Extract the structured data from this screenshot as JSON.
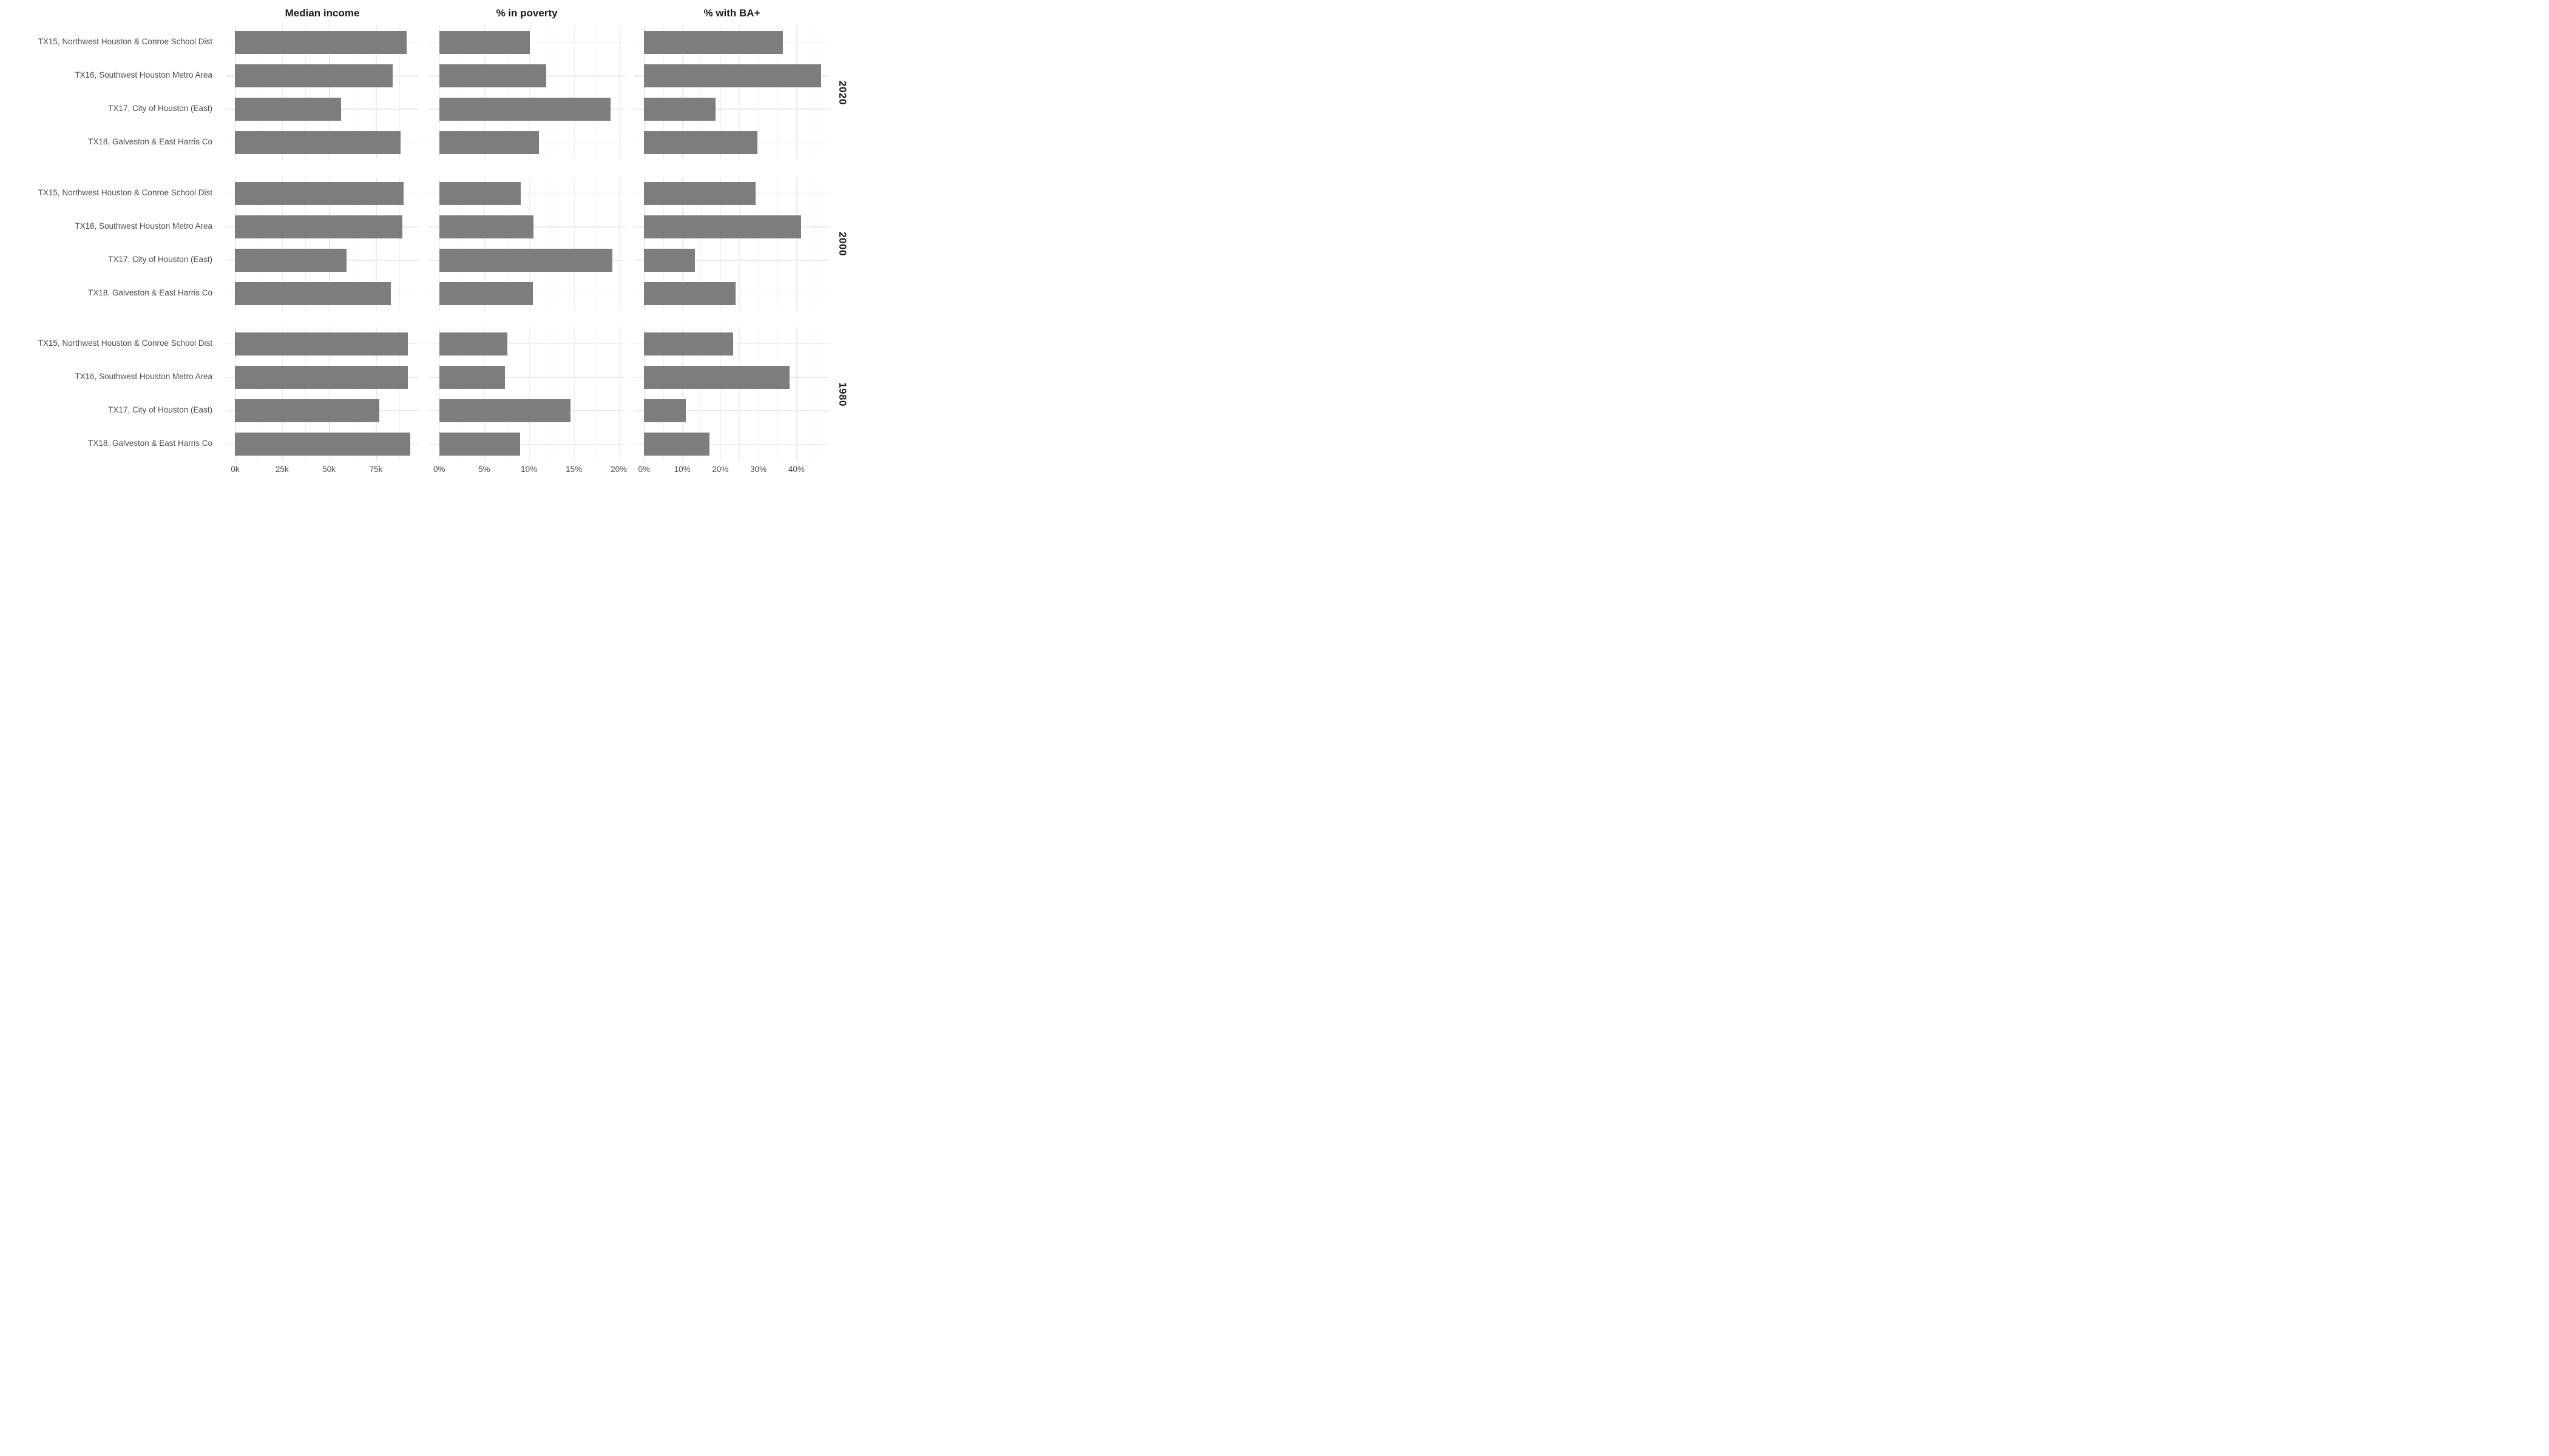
{
  "chart_data": {
    "type": "bar",
    "orientation": "horizontal",
    "faceting": "metric columns by year rows",
    "grid": "on",
    "legend": "none",
    "bar_color": "#7d7d7d",
    "gridline_color": "#ebebeb",
    "axis_text_color": "#4d4d4d",
    "title_text_color": "#1a1a1a",
    "categories": [
      "TX15, Northwest Houston & Conroe School Dist",
      "TX16, Southwest Houston Metro Area",
      "TX17, City of Houston (East)",
      "TX18, Galveston & East Harris Co"
    ],
    "facet_rows": [
      "2020",
      "2000",
      "1980"
    ],
    "panels": [
      {
        "title": "Median income",
        "unit": "thousand dollars",
        "tick_labels": [
          "0k",
          "25k",
          "50k",
          "75k"
        ],
        "tick_values": [
          0,
          25,
          50,
          75
        ],
        "minor_values": [
          12.5,
          37.5,
          62.5,
          87.5
        ],
        "axis_min": -5,
        "axis_max": 97.8,
        "values_by_year": {
          "2020": [
            91.4,
            83.8,
            56.3,
            88.0
          ],
          "2000": [
            89.8,
            89.2,
            59.2,
            82.8
          ],
          "1980": [
            91.9,
            92.1,
            76.9,
            93.2
          ]
        }
      },
      {
        "title": "% in poverty",
        "unit": "percent",
        "tick_labels": [
          "0%",
          "5%",
          "10%",
          "15%",
          "20%"
        ],
        "tick_values": [
          0,
          5,
          10,
          15,
          20
        ],
        "minor_values": [
          2.5,
          7.5,
          12.5,
          17.5
        ],
        "axis_min": -1.2,
        "axis_max": 20.7,
        "values_by_year": {
          "2020": [
            10.1,
            11.9,
            19.1,
            11.1
          ],
          "2000": [
            9.1,
            10.5,
            19.3,
            10.4
          ],
          "1980": [
            7.6,
            7.3,
            14.6,
            9.0
          ]
        }
      },
      {
        "title": "% with BA+",
        "unit": "percent",
        "tick_labels": [
          "0%",
          "10%",
          "20%",
          "30%",
          "40%"
        ],
        "tick_values": [
          0,
          10,
          20,
          30,
          40
        ],
        "minor_values": [
          5,
          15,
          25,
          35,
          45
        ],
        "axis_min": -2.6,
        "axis_max": 48.7,
        "values_by_year": {
          "2020": [
            36.4,
            46.5,
            18.8,
            29.8
          ],
          "2000": [
            29.2,
            41.2,
            13.3,
            24.0
          ],
          "1980": [
            23.4,
            38.2,
            11.0,
            17.2
          ]
        }
      }
    ]
  }
}
